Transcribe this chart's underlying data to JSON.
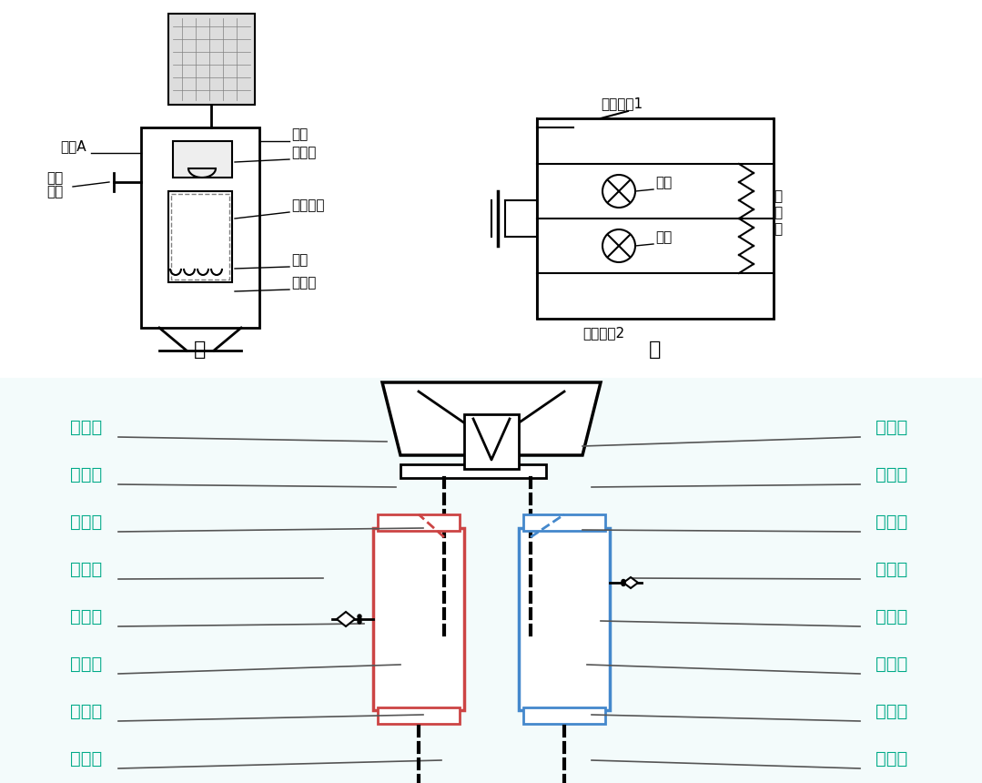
{
  "bg_color": "#ffffff",
  "label_color": "#00aa88",
  "line_color": "#555555",
  "left_labels": [
    "排气室",
    "排气管",
    "进水管",
    "热水阀",
    "热水管",
    "热水胆",
    "排水管",
    "排水阀"
  ],
  "right_labels": [
    "聪明座",
    "贮水罐",
    "进水管",
    "冷水管",
    "冷水阀",
    "冷水胆",
    "排水管",
    "排水阀"
  ],
  "top_left_labels": [
    "浮体A",
    "冷水开关"
  ],
  "top_right_labels": [
    "阀门",
    "控水槽",
    "开水开关",
    "热阻",
    "加热管"
  ],
  "top_circuit_labels": [
    "温控开关1",
    "绿灯",
    "红灯",
    "加热管",
    "温控开关2"
  ],
  "bottom_label_jia": "甲",
  "bottom_label_yi": "乙",
  "font_size_main": 14,
  "font_size_small": 11
}
